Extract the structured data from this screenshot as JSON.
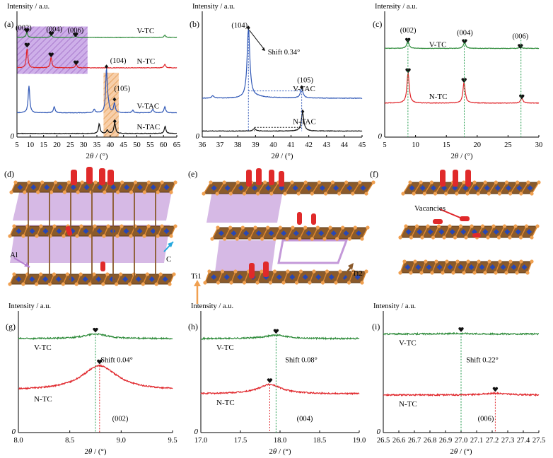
{
  "figure": {
    "y_label": "Intensity / a.u.",
    "x_label_prefix": "2",
    "x_label_theta": "θ",
    "x_label_suffix": " / (°)",
    "origin_label": "0"
  },
  "colors": {
    "green": "#2e8b3a",
    "red": "#e0262b",
    "blue": "#2f57b6",
    "black": "#111111",
    "purple_band": "#b58ad6",
    "orange_band": "#f0b36a",
    "ti": "#e0892e",
    "ti_dark": "#8a5a2b",
    "carbon": "#2747b5",
    "al": "#b57fd0",
    "surface": "#e02a2a"
  },
  "structures": {
    "panels": [
      {
        "letter": "(d)",
        "labels": [
          "Al",
          "C"
        ]
      },
      {
        "letter": "(e)",
        "labels": [
          "Ti1",
          "Ti2"
        ]
      },
      {
        "letter": "(f)",
        "labels": [
          "Vacancies"
        ]
      }
    ]
  },
  "chart_data": [
    {
      "type": "line",
      "panel": "(a)",
      "xlim": [
        5,
        65
      ],
      "xticks": [
        5,
        10,
        15,
        20,
        25,
        30,
        35,
        40,
        45,
        50,
        55,
        60,
        65
      ],
      "ylim": [
        0,
        1
      ],
      "annotations": [
        "(002)",
        "(004)",
        "(006)",
        "(104)",
        "(105)"
      ],
      "series": [
        {
          "name": "V-TC",
          "color": "green",
          "offset": 0.82,
          "peaks": [
            [
              8.7,
              0.04
            ],
            [
              17.9,
              0.02
            ],
            [
              27.0,
              0.015
            ],
            [
              60.5,
              0.02
            ]
          ]
        },
        {
          "name": "N-TC",
          "color": "red",
          "offset": 0.57,
          "peaks": [
            [
              8.8,
              0.16
            ],
            [
              17.8,
              0.09
            ],
            [
              27.2,
              0.03
            ],
            [
              60.5,
              0.03
            ]
          ]
        },
        {
          "name": "V-TAC",
          "color": "blue",
          "offset": 0.2,
          "peaks": [
            [
              9.5,
              0.22
            ],
            [
              19.0,
              0.05
            ],
            [
              34.0,
              0.03
            ],
            [
              38.6,
              0.36
            ],
            [
              39.3,
              0.05
            ],
            [
              41.6,
              0.08
            ],
            [
              48.5,
              0.02
            ],
            [
              56.0,
              0.03
            ],
            [
              60.5,
              0.05
            ]
          ]
        },
        {
          "name": "N-TAC",
          "color": "black",
          "offset": 0.03,
          "peaks": [
            [
              35.9,
              0.08
            ],
            [
              38.9,
              0.03
            ],
            [
              41.7,
              0.09
            ],
            [
              60.6,
              0.06
            ]
          ]
        }
      ]
    },
    {
      "type": "line",
      "panel": "(b)",
      "xlim": [
        36,
        45
      ],
      "xticks": [
        36,
        37,
        38,
        39,
        40,
        41,
        42,
        43,
        44,
        45
      ],
      "ylim": [
        0,
        1
      ],
      "annotations": [
        "(104)",
        "(105)",
        "Shift 0.34°"
      ],
      "series": [
        {
          "name": "V-TAC",
          "color": "blue",
          "offset": 0.32,
          "peaks": [
            [
              36.6,
              0.02
            ],
            [
              38.6,
              0.57
            ],
            [
              41.6,
              0.08
            ]
          ]
        },
        {
          "name": "N-TAC",
          "color": "black",
          "offset": 0.05,
          "peaks": [
            [
              38.94,
              0.02
            ],
            [
              41.65,
              0.15
            ]
          ]
        }
      ]
    },
    {
      "type": "line",
      "panel": "(c)",
      "xlim": [
        5,
        30
      ],
      "xticks": [
        5,
        10,
        15,
        20,
        25,
        30
      ],
      "ylim": [
        0,
        1
      ],
      "annotations": [
        "(002)",
        "(004)",
        "(006)"
      ],
      "series": [
        {
          "name": "V-TC",
          "color": "green",
          "offset": 0.73,
          "peaks": [
            [
              8.75,
              0.06
            ],
            [
              17.95,
              0.05
            ],
            [
              27.0,
              0.012
            ]
          ]
        },
        {
          "name": "N-TC",
          "color": "red",
          "offset": 0.28,
          "peaks": [
            [
              8.79,
              0.25
            ],
            [
              17.87,
              0.17
            ],
            [
              27.22,
              0.04
            ]
          ]
        }
      ]
    },
    {
      "type": "line",
      "panel": "(g)",
      "xlim": [
        8.0,
        9.5
      ],
      "xticks": [
        8.0,
        8.5,
        9.0,
        9.5
      ],
      "ylim": [
        0,
        1
      ],
      "annotations": [
        "Shift 0.04°",
        "(002)"
      ],
      "series": [
        {
          "name": "V-TC",
          "color": "green",
          "offset": 0.8,
          "peaks": [
            [
              8.75,
              0.04
            ]
          ]
        },
        {
          "name": "N-TC",
          "color": "red",
          "offset": 0.36,
          "peaks": [
            [
              8.79,
              0.21
            ]
          ]
        }
      ]
    },
    {
      "type": "line",
      "panel": "(h)",
      "xlim": [
        17.0,
        19.0
      ],
      "xticks": [
        17.0,
        17.5,
        18.0,
        18.5,
        19.0
      ],
      "ylim": [
        0,
        1
      ],
      "annotations": [
        "Shift 0.08°",
        "(004)"
      ],
      "series": [
        {
          "name": "V-TC",
          "color": "green",
          "offset": 0.8,
          "peaks": [
            [
              17.95,
              0.03
            ]
          ]
        },
        {
          "name": "N-TC",
          "color": "red",
          "offset": 0.33,
          "peaks": [
            [
              17.87,
              0.08
            ]
          ]
        }
      ]
    },
    {
      "type": "line",
      "panel": "(i)",
      "xlim": [
        26.5,
        27.5
      ],
      "xticks": [
        26.5,
        26.6,
        26.7,
        26.8,
        26.9,
        27.0,
        27.1,
        27.2,
        27.3,
        27.4,
        27.5
      ],
      "ylim": [
        0,
        1
      ],
      "annotations": [
        "Shift 0.22°",
        "(006)"
      ],
      "series": [
        {
          "name": "V-TC",
          "color": "green",
          "offset": 0.84,
          "peaks": [
            [
              27.0,
              0.005
            ]
          ]
        },
        {
          "name": "N-TC",
          "color": "red",
          "offset": 0.32,
          "peaks": [
            [
              27.22,
              0.015
            ]
          ]
        }
      ]
    }
  ]
}
